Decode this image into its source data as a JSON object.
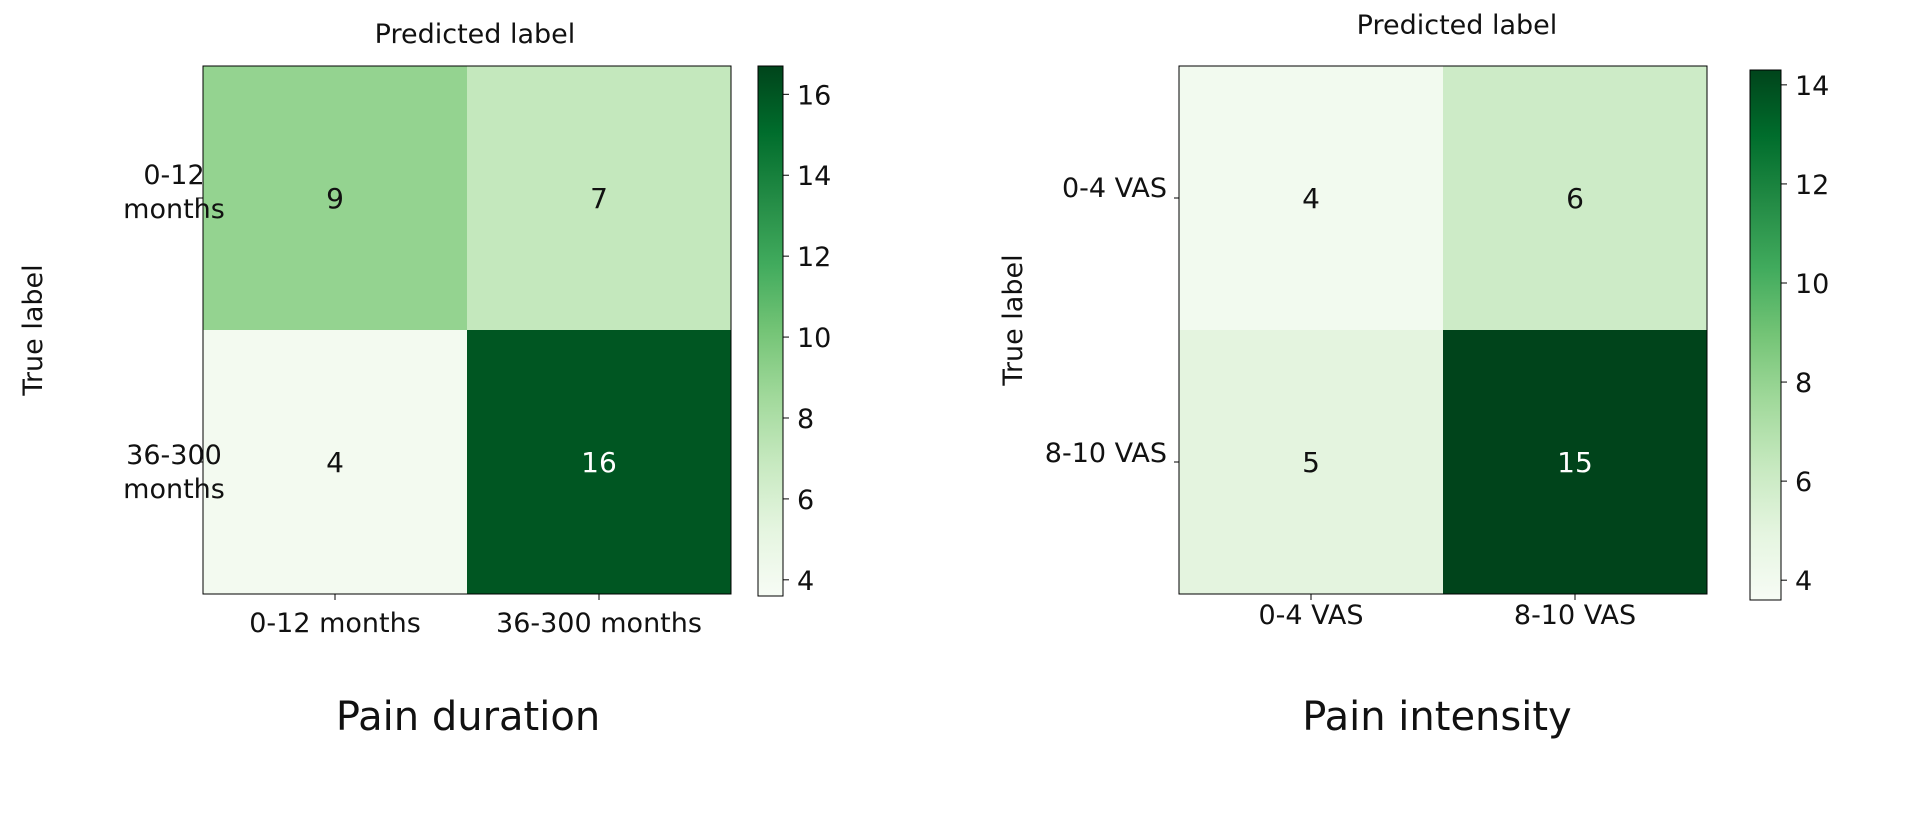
{
  "figure": {
    "panel_titles": [
      "Pain duration",
      "Pain intensity"
    ]
  },
  "chart_data": [
    {
      "type": "heatmap",
      "title": "Pain duration",
      "xlabel": "Predicted label",
      "ylabel": "True label",
      "x_categories": [
        "0-12 months",
        "36-300 months"
      ],
      "y_categories": [
        "0-12\nmonths",
        "36-300\nmonths"
      ],
      "values": [
        [
          9,
          7
        ],
        [
          4,
          16
        ]
      ],
      "colormap": "Greens",
      "colorbar": {
        "range": [
          3.6,
          16.7
        ],
        "ticks": [
          4,
          6,
          8,
          10,
          12,
          14,
          16
        ]
      },
      "grid": false
    },
    {
      "type": "heatmap",
      "title": "Pain intensity",
      "xlabel": "Predicted label",
      "ylabel": "True label",
      "x_categories": [
        "0-4 VAS",
        "8-10 VAS"
      ],
      "y_categories": [
        "0-4 VAS",
        "8-10 VAS"
      ],
      "values": [
        [
          4,
          6
        ],
        [
          5,
          15
        ]
      ],
      "colormap": "Greens",
      "colorbar": {
        "range": [
          3.6,
          14.3
        ],
        "ticks": [
          4,
          6,
          8,
          10,
          12,
          14
        ]
      },
      "grid": false
    }
  ]
}
